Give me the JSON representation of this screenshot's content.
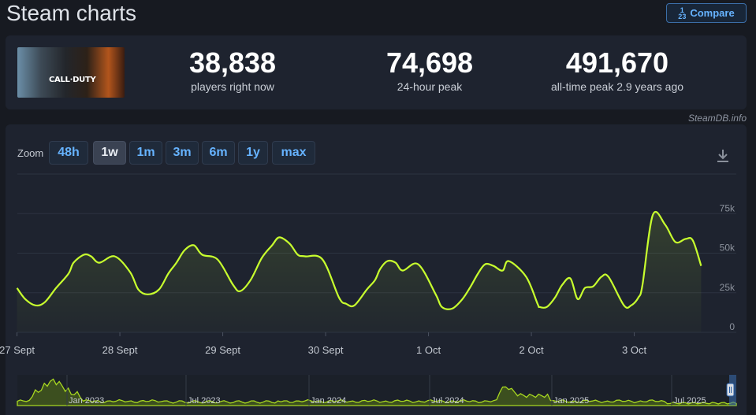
{
  "header": {
    "title": "Steam charts",
    "compare_label": "Compare",
    "compare_icon_top": "1",
    "compare_icon_bottom": "2",
    "compare_icon_digit": "3"
  },
  "stats": [
    {
      "value": "38,838",
      "label": "players right now"
    },
    {
      "value": "74,698",
      "label": "24-hour peak"
    },
    {
      "value": "491,670",
      "label": "all-time peak 2.9 years ago"
    }
  ],
  "game": {
    "logo_text": "CALL·DUTY"
  },
  "credit": "SteamDB.info",
  "zoom": {
    "label": "Zoom",
    "options": [
      "48h",
      "1w",
      "1m",
      "3m",
      "6m",
      "1y",
      "max"
    ],
    "selected": "1w"
  },
  "icons": {
    "download": "download-icon",
    "range_handle": "range-handle-icon"
  },
  "colors": {
    "line": "#c8ff2e",
    "panel": "#1e232f",
    "background": "#171a21",
    "accent": "#66b3ff"
  },
  "chart_data": {
    "type": "area",
    "x_ticks": [
      "27 Sept",
      "28 Sept",
      "29 Sept",
      "30 Sept",
      "1 Oct",
      "2 Oct",
      "3 Oct"
    ],
    "y_ticks": [
      "0",
      "25k",
      "50k",
      "75k"
    ],
    "ylim": [
      0,
      100000
    ],
    "grid": true,
    "series": [
      {
        "x_days": [
          0,
          0.08,
          0.18,
          0.27,
          0.38,
          0.5,
          0.55,
          0.65,
          0.72,
          0.8,
          0.95,
          1.1,
          1.18,
          1.27,
          1.38,
          1.47,
          1.55,
          1.63,
          1.72,
          1.8,
          1.95,
          2.1,
          2.17,
          2.27,
          2.38,
          2.48,
          2.55,
          2.65,
          2.73,
          2.8,
          2.97,
          3.13,
          3.2,
          3.28,
          3.4,
          3.48,
          3.53,
          3.6,
          3.68,
          3.75,
          3.9,
          4.07,
          4.13,
          4.23,
          4.33,
          4.41,
          4.48,
          4.55,
          4.63,
          4.72,
          4.78,
          4.95,
          5.06,
          5.08,
          5.15,
          5.23,
          5.3,
          5.38,
          5.45,
          5.52,
          5.6,
          5.68,
          5.75,
          5.9,
          5.97,
          6.04,
          6.08,
          6.18,
          6.3,
          6.4,
          6.5,
          6.57,
          6.65
        ],
        "values": [
          28000,
          21000,
          17000,
          19000,
          28000,
          37000,
          44000,
          49000,
          48000,
          44000,
          48000,
          38000,
          27000,
          24000,
          27000,
          37000,
          44000,
          52000,
          55000,
          49000,
          46000,
          30000,
          26000,
          33000,
          47000,
          55000,
          60000,
          56000,
          49000,
          48000,
          46000,
          22000,
          18000,
          17000,
          27000,
          33000,
          40000,
          45000,
          44000,
          39000,
          43000,
          24000,
          16000,
          15000,
          21000,
          29000,
          37000,
          43000,
          42000,
          39000,
          45000,
          35000,
          18000,
          16000,
          16000,
          22000,
          30000,
          34000,
          21000,
          28000,
          29000,
          35000,
          35000,
          17000,
          17000,
          22000,
          30000,
          74000,
          68000,
          57000,
          59000,
          58000,
          42000
        ]
      }
    ],
    "navigator": {
      "ticks": [
        "Jan 2023",
        "Jul 2023",
        "Jan 2024",
        "Jul 2024",
        "Jan 2025",
        "Jul 2025"
      ]
    }
  }
}
